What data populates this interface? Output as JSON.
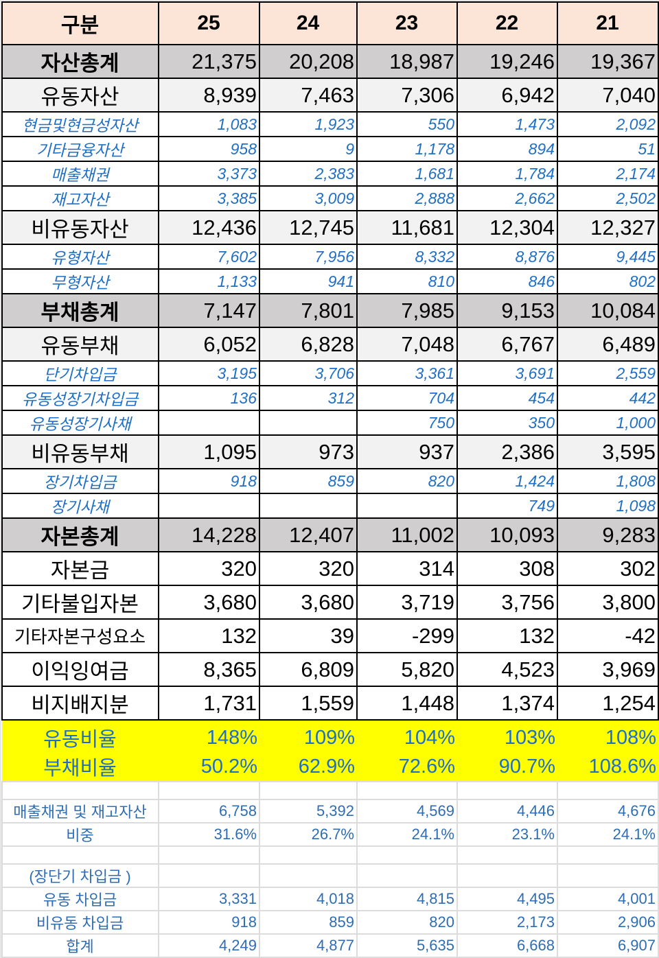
{
  "table": {
    "header": {
      "label": "구분",
      "years": [
        "25",
        "24",
        "23",
        "22",
        "21"
      ]
    },
    "assets": {
      "total": {
        "label": "자산총계",
        "values": [
          "21,375",
          "20,208",
          "18,987",
          "19,246",
          "19,367"
        ]
      },
      "current": {
        "label": "유동자산",
        "values": [
          "8,939",
          "7,463",
          "7,306",
          "6,942",
          "7,040"
        ]
      },
      "current_items": [
        {
          "label": "현금및현금성자산",
          "values": [
            "1,083",
            "1,923",
            "550",
            "1,473",
            "2,092"
          ]
        },
        {
          "label": "기타금융자산",
          "values": [
            "958",
            "9",
            "1,178",
            "894",
            "51"
          ]
        },
        {
          "label": "매출채권",
          "values": [
            "3,373",
            "2,383",
            "1,681",
            "1,784",
            "2,174"
          ]
        },
        {
          "label": "재고자산",
          "values": [
            "3,385",
            "3,009",
            "2,888",
            "2,662",
            "2,502"
          ]
        }
      ],
      "noncurrent": {
        "label": "비유동자산",
        "values": [
          "12,436",
          "12,745",
          "11,681",
          "12,304",
          "12,327"
        ]
      },
      "noncurrent_items": [
        {
          "label": "유형자산",
          "values": [
            "7,602",
            "7,956",
            "8,332",
            "8,876",
            "9,445"
          ]
        },
        {
          "label": "무형자산",
          "values": [
            "1,133",
            "941",
            "810",
            "846",
            "802"
          ]
        }
      ]
    },
    "liabilities": {
      "total": {
        "label": "부채총계",
        "values": [
          "7,147",
          "7,801",
          "7,985",
          "9,153",
          "10,084"
        ]
      },
      "current": {
        "label": "유동부채",
        "values": [
          "6,052",
          "6,828",
          "7,048",
          "6,767",
          "6,489"
        ]
      },
      "current_items": [
        {
          "label": "단기차입금",
          "values": [
            "3,195",
            "3,706",
            "3,361",
            "3,691",
            "2,559"
          ]
        },
        {
          "label": "유동성장기차입금",
          "values": [
            "136",
            "312",
            "704",
            "454",
            "442"
          ]
        },
        {
          "label": "유동성장기사채",
          "values": [
            "",
            "",
            "750",
            "350",
            "1,000"
          ]
        }
      ],
      "noncurrent": {
        "label": "비유동부채",
        "values": [
          "1,095",
          "973",
          "937",
          "2,386",
          "3,595"
        ]
      },
      "noncurrent_items": [
        {
          "label": "장기차입금",
          "values": [
            "918",
            "859",
            "820",
            "1,424",
            "1,808"
          ]
        },
        {
          "label": "장기사채",
          "values": [
            "",
            "",
            "",
            "749",
            "1,098"
          ]
        }
      ]
    },
    "equity": {
      "total": {
        "label": "자본총계",
        "values": [
          "14,228",
          "12,407",
          "11,002",
          "10,093",
          "9,283"
        ]
      },
      "items": [
        {
          "label": "자본금",
          "values": [
            "320",
            "320",
            "314",
            "308",
            "302"
          ]
        },
        {
          "label": "기타불입자본",
          "values": [
            "3,680",
            "3,680",
            "3,719",
            "3,756",
            "3,800"
          ]
        },
        {
          "label": "기타자본구성요소",
          "values": [
            "132",
            "39",
            "-299",
            "132",
            "-42"
          ]
        },
        {
          "label": "이익잉여금",
          "values": [
            "8,365",
            "6,809",
            "5,820",
            "4,523",
            "3,969"
          ]
        },
        {
          "label": "비지배지분",
          "values": [
            "1,731",
            "1,559",
            "1,448",
            "1,374",
            "1,254"
          ]
        }
      ]
    },
    "ratios": [
      {
        "label": "유동비율",
        "values": [
          "148%",
          "109%",
          "104%",
          "103%",
          "108%"
        ]
      },
      {
        "label": "부채비율",
        "values": [
          "50.2%",
          "62.9%",
          "72.6%",
          "90.7%",
          "108.6%"
        ]
      }
    ],
    "supplementary": {
      "receivables_inventory": {
        "label": "매출채권 및 재고자산",
        "values": [
          "6,758",
          "5,392",
          "4,569",
          "4,446",
          "4,676"
        ]
      },
      "weight": {
        "label": "비중",
        "values": [
          "31.6%",
          "26.7%",
          "24.1%",
          "23.1%",
          "24.1%"
        ]
      },
      "borrowings_caption": "(장단기 차입금 )",
      "current_borrowings": {
        "label": "유동 차입금",
        "values": [
          "3,331",
          "4,018",
          "4,815",
          "4,495",
          "4,001"
        ]
      },
      "noncurrent_borrowings": {
        "label": "비유동 차입금",
        "values": [
          "918",
          "859",
          "820",
          "2,173",
          "2,906"
        ]
      },
      "total_borrowings": {
        "label": "합계",
        "values": [
          "4,249",
          "4,877",
          "5,635",
          "6,668",
          "6,907"
        ]
      }
    }
  },
  "colors": {
    "header_bg": "#fce4d6",
    "total_bg": "#d0cece",
    "major_bg": "#f2f2f2",
    "highlight_bg": "#ffff00",
    "sub_text": "#1f6fc5",
    "supp_text": "#2e6db4"
  }
}
